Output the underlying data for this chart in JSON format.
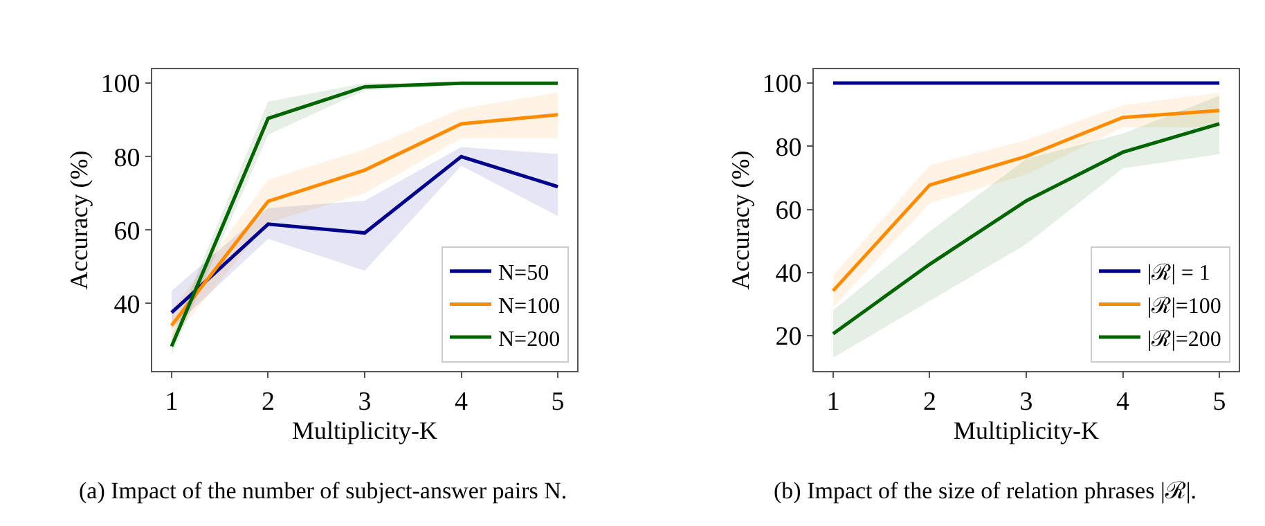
{
  "chart_data": [
    {
      "type": "line",
      "xlabel": "Multiplicity-K",
      "ylabel": "Accuracy (%)",
      "x": [
        1,
        2,
        3,
        4,
        5
      ],
      "xlim": [
        0.8,
        5.2
      ],
      "ylim": [
        21.6,
        103.8
      ],
      "xticks": [
        1,
        2,
        3,
        4,
        5
      ],
      "yticks": [
        40,
        60,
        80,
        100
      ],
      "legend": "bottom right",
      "marker": "none",
      "line_style": "solid",
      "series": [
        {
          "name": "N=50",
          "color": "#00008b",
          "values": [
            37.5,
            61.6,
            59.2,
            80,
            71.8
          ],
          "lower": [
            33,
            57.6,
            48.9,
            77.5,
            63.8
          ],
          "upper": [
            43.4,
            66,
            68,
            82.6,
            80.7
          ]
        },
        {
          "name": "N=100",
          "color": "#ff8c00",
          "values": [
            34,
            67.8,
            76.3,
            88.9,
            91.4
          ],
          "lower": [
            30,
            62,
            70,
            85,
            85
          ],
          "upper": [
            38,
            73.7,
            82,
            93,
            97.5
          ]
        },
        {
          "name": "N=200",
          "color": "#006400",
          "values": [
            28.3,
            90.4,
            99,
            100,
            100
          ],
          "lower": [
            26,
            86,
            98,
            99.5,
            99.5
          ],
          "upper": [
            31,
            95,
            100,
            100,
            100
          ]
        }
      ],
      "annotations": [
        "(a) Impact of the number of subject-answer pairs N."
      ]
    },
    {
      "type": "line",
      "xlabel": "Multiplicity-K",
      "ylabel": "Accuracy (%)",
      "x": [
        1,
        2,
        3,
        4,
        5
      ],
      "xlim": [
        0.8,
        5.2
      ],
      "ylim": [
        8.8,
        104.4
      ],
      "xticks": [
        1,
        2,
        3,
        4,
        5
      ],
      "yticks": [
        20,
        40,
        60,
        80,
        100
      ],
      "legend": "bottom right",
      "marker": "none",
      "line_style": "solid",
      "series": [
        {
          "name": "|ℛ| = 1",
          "color": "#00008b",
          "values": [
            100,
            100,
            100,
            100,
            100
          ]
        },
        {
          "name": "|ℛ|=100",
          "color": "#ff8c00",
          "values": [
            34.2,
            67.7,
            76.8,
            89.1,
            91.3
          ],
          "lower": [
            29,
            62,
            71,
            86,
            86
          ],
          "upper": [
            39,
            74,
            82,
            93,
            97
          ]
        },
        {
          "name": "|ℛ|=200",
          "color": "#006400",
          "values": [
            20.6,
            42.6,
            62.7,
            78.1,
            87.1
          ],
          "lower": [
            13,
            31,
            49,
            73,
            77.5
          ],
          "upper": [
            28,
            53,
            76,
            84,
            96
          ]
        }
      ],
      "annotations": [
        "(b) Impact of the size of relation phrases |ℛ|."
      ]
    }
  ]
}
